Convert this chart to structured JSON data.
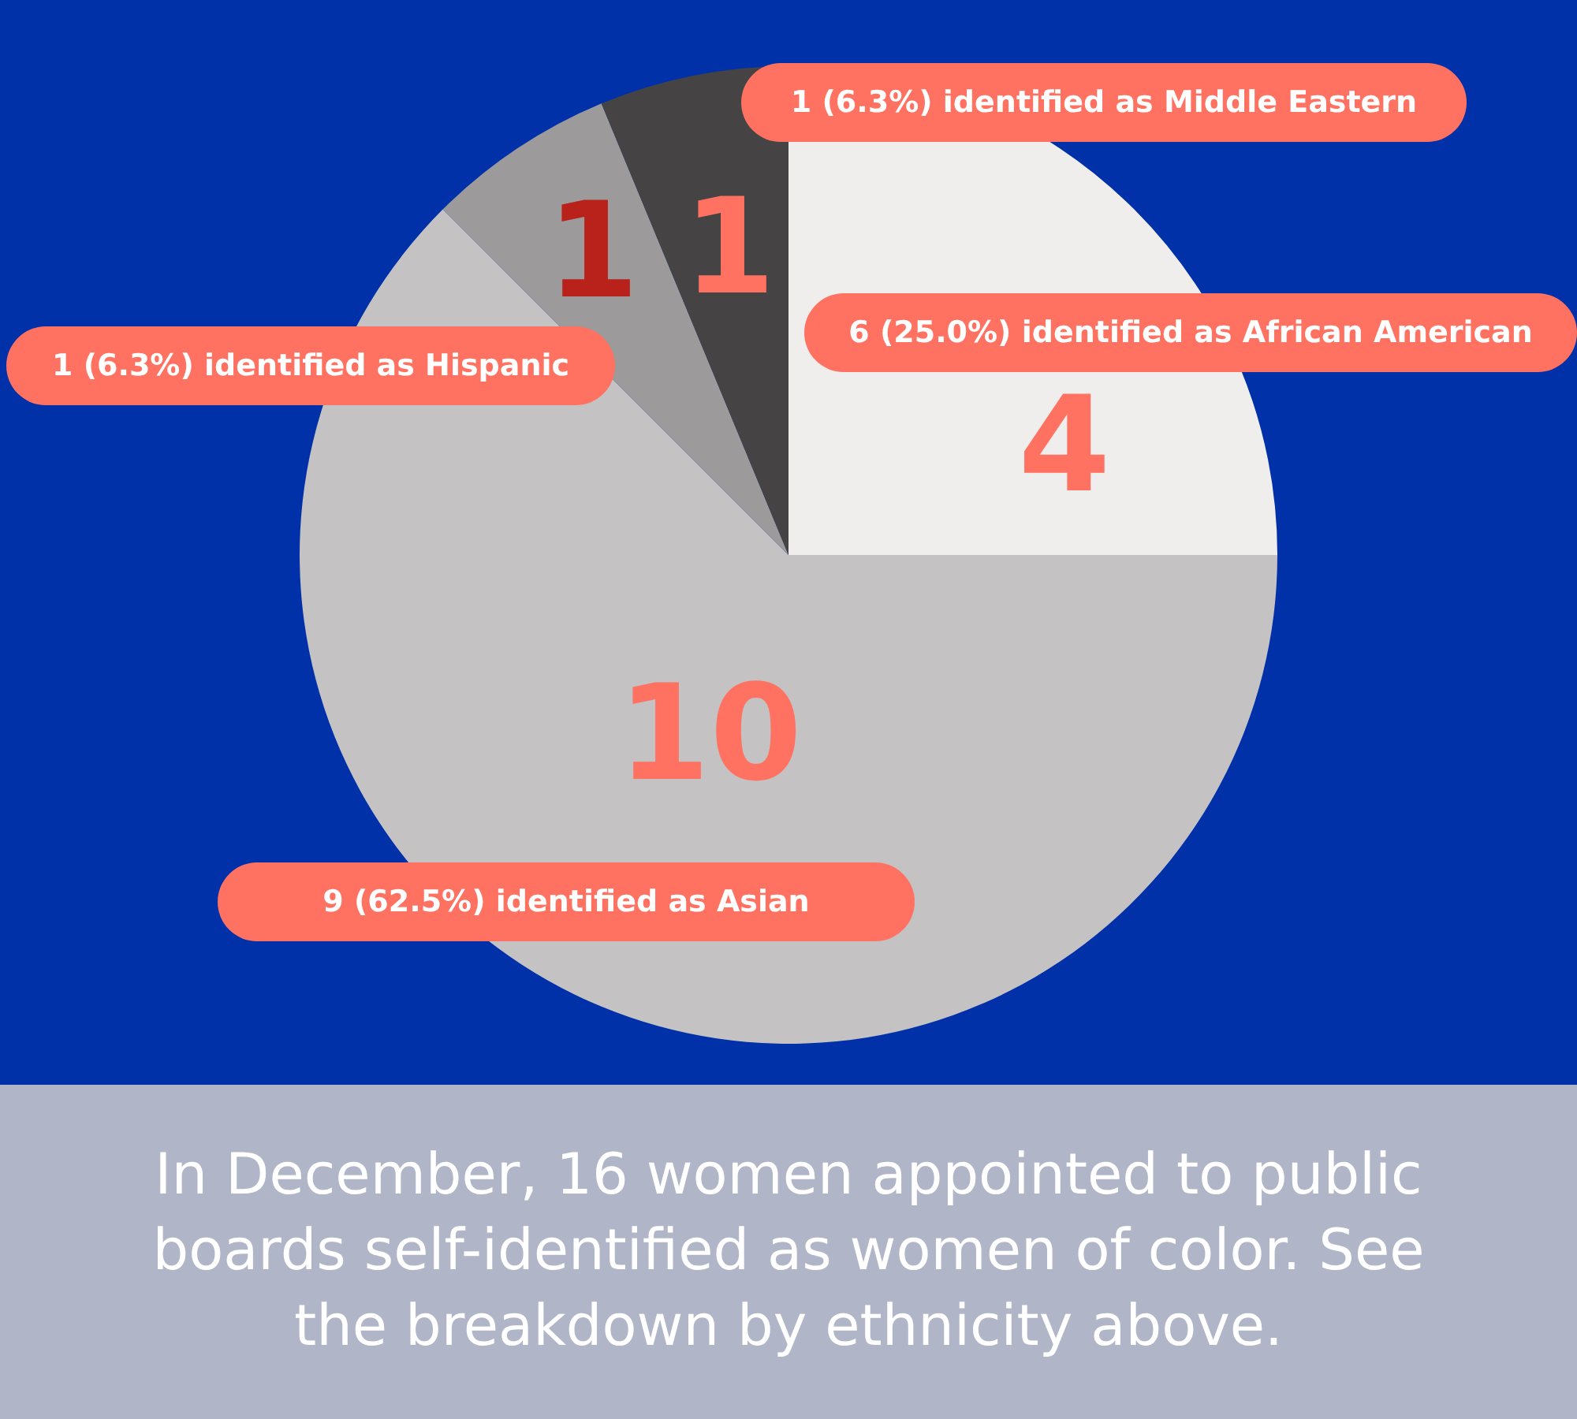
{
  "chart_data": {
    "type": "pie",
    "categories": [
      null,
      null,
      null,
      null
    ],
    "values": [
      4,
      10,
      1,
      1
    ],
    "colors": [
      "#f0eded",
      "#c4c2c3",
      "#9c9a9b",
      "#454344"
    ],
    "data_labels": true,
    "legend": false,
    "annotations": [
      "1 (6.3%) identified as Middle Eastern",
      "6  (25.0%) identified as African American",
      "1  (6.3%) identified as Hispanic",
      "9  (62.5%) identified as Asian",
      "In December, 16 women appointed to public boards self-identified as women of color. See the breakdown by ethnicity above."
    ]
  }
}
